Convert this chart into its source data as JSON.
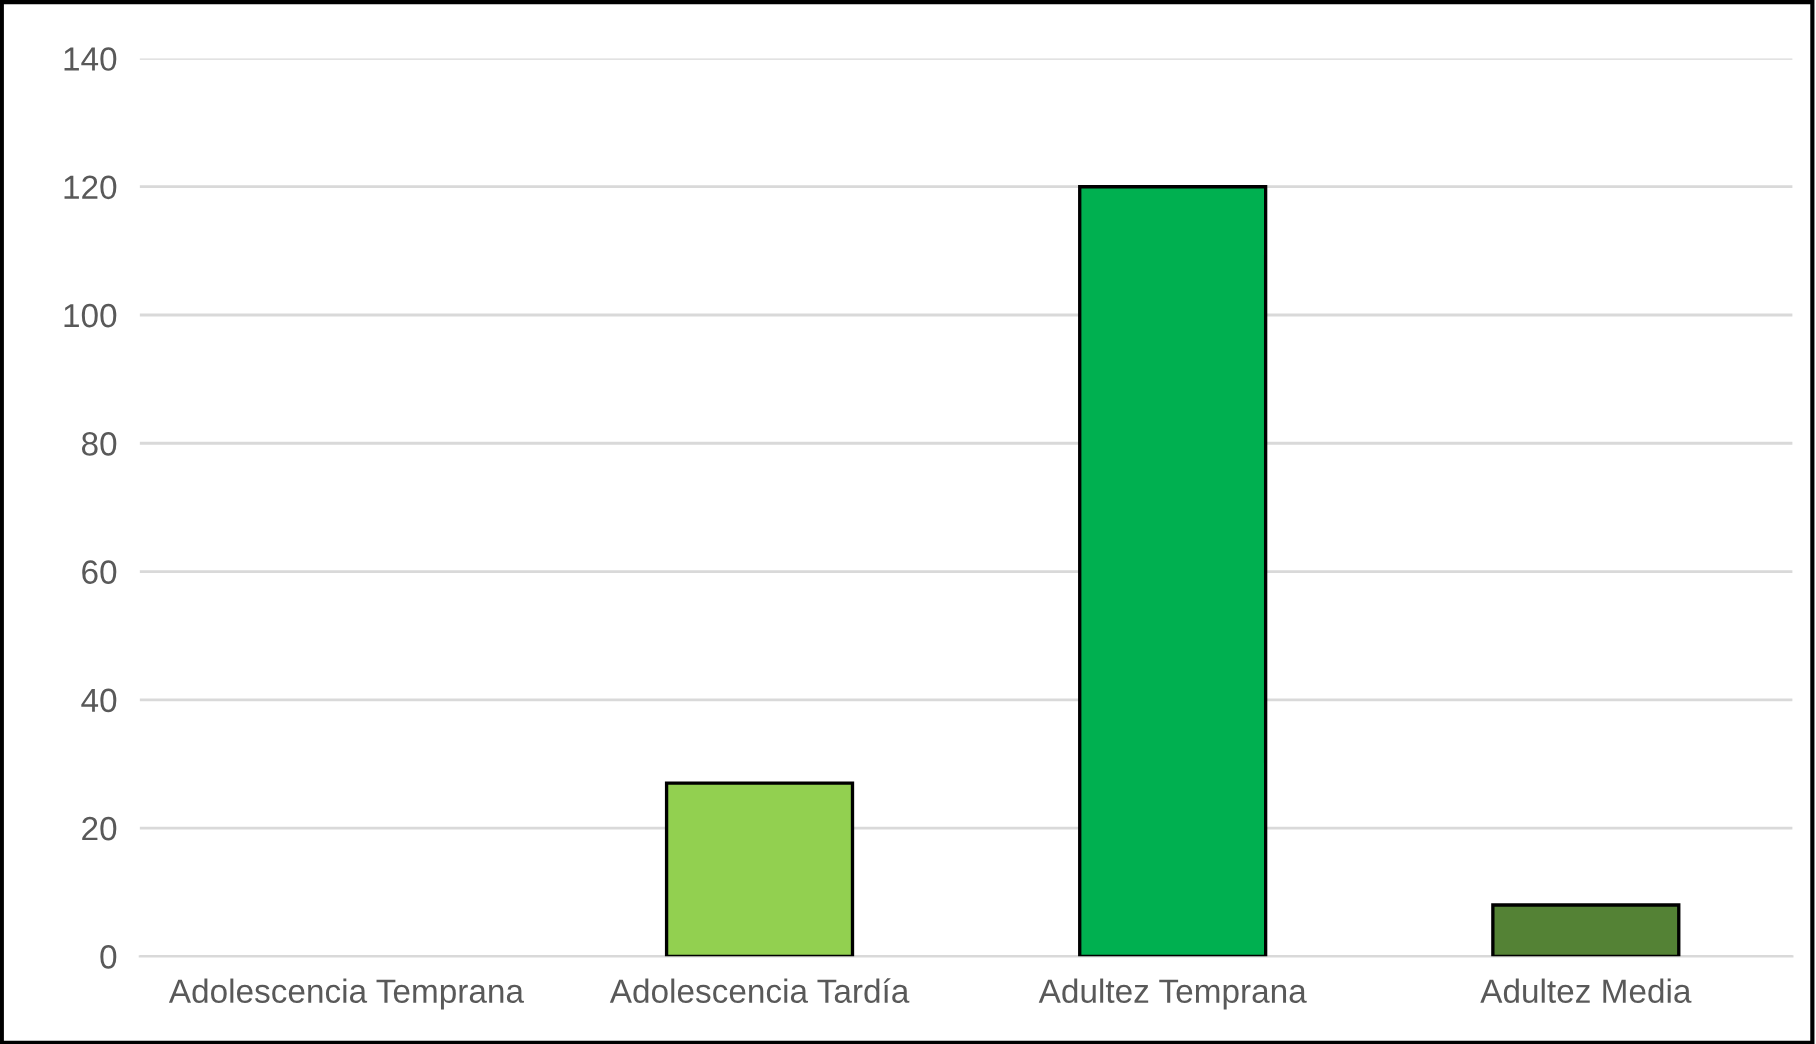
{
  "chart_data": {
    "type": "bar",
    "categories": [
      "Adolescencia Temprana",
      "Adolescencia Tardía",
      "Adultez Temprana",
      "Adultez Media"
    ],
    "values": [
      0,
      27,
      120,
      8
    ],
    "colors": [
      "#a9d18e",
      "#92d050",
      "#00b050",
      "#548235"
    ],
    "ylim": [
      0,
      140
    ],
    "yticks": [
      0,
      20,
      40,
      60,
      80,
      100,
      120,
      140
    ],
    "grid": "y",
    "legend": false
  }
}
